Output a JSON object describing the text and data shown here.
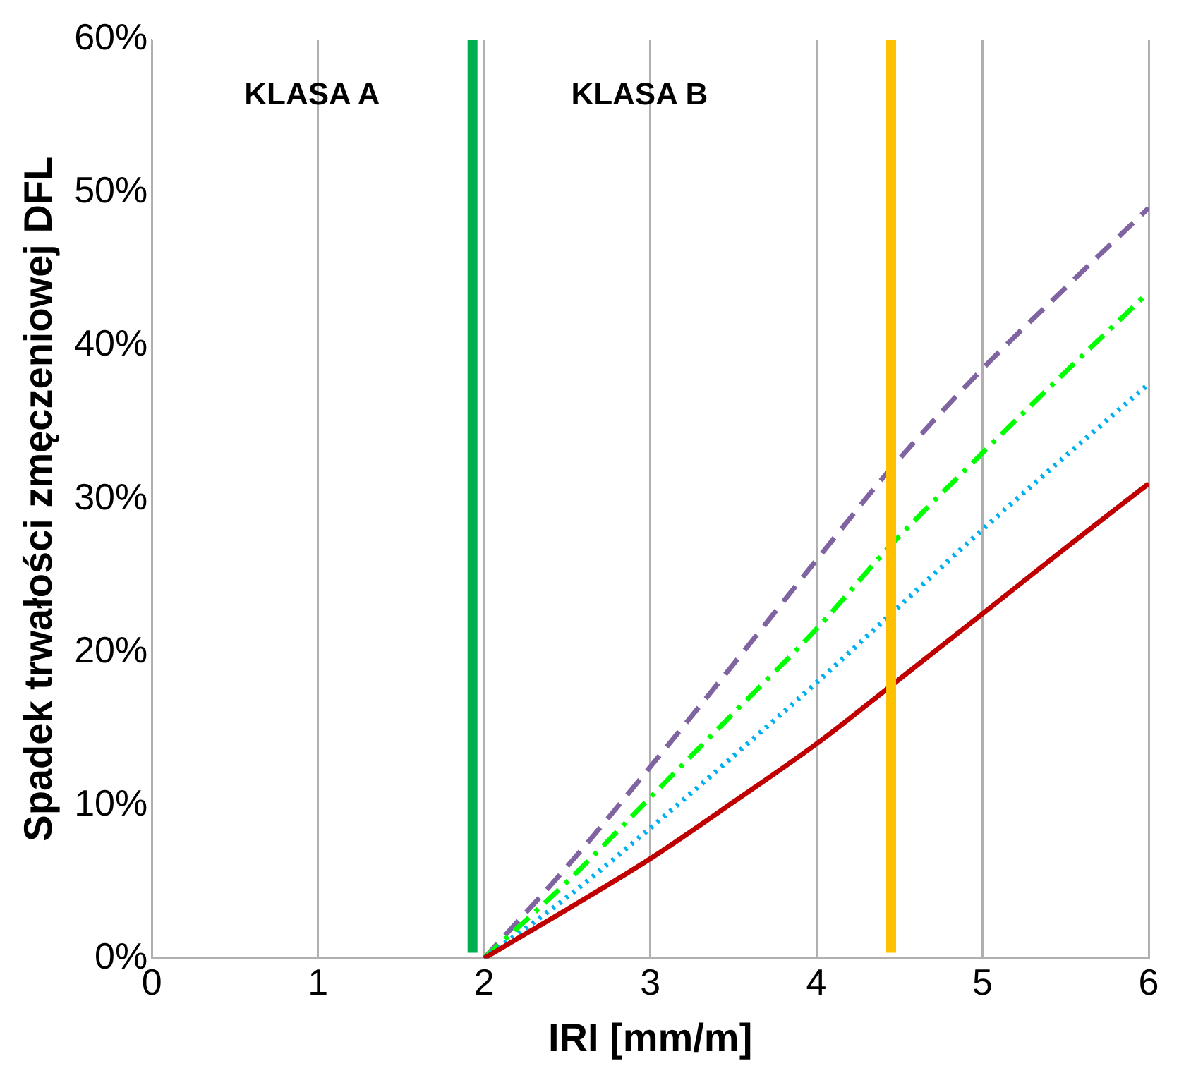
{
  "chart_data": {
    "type": "line",
    "xlabel": "IRI [mm/m]",
    "ylabel": "Spadek trwałości zmęczeniowej DFL",
    "xlim": [
      0,
      6
    ],
    "xticks": [
      0,
      1,
      2,
      3,
      4,
      5,
      6
    ],
    "ylim": [
      0,
      60
    ],
    "yticks": [
      {
        "value": 0,
        "label": "0%"
      },
      {
        "value": 10,
        "label": "10%"
      },
      {
        "value": 20,
        "label": "20%"
      },
      {
        "value": 30,
        "label": "30%"
      },
      {
        "value": 40,
        "label": "40%"
      },
      {
        "value": 50,
        "label": "50%"
      },
      {
        "value": 60,
        "label": "60%"
      }
    ],
    "x": [
      2,
      2.5,
      3,
      3.5,
      4,
      4.45,
      5,
      5.5,
      6
    ],
    "series": [
      {
        "color": "#c00000",
        "line_style": "solid",
        "values": [
          0,
          3.2,
          6.5,
          10.2,
          14,
          17.8,
          22.5,
          26.8,
          31
        ]
      },
      {
        "color": "#00b0f0",
        "line_style": "dotted",
        "values": [
          0,
          4,
          8.5,
          13.2,
          18,
          22.5,
          28,
          32.8,
          37.5
        ]
      },
      {
        "color": "#00ff00",
        "line_style": "dashdot",
        "values": [
          0,
          5,
          10.5,
          16,
          21.5,
          27,
          33,
          38.3,
          43.5
        ]
      },
      {
        "color": "#8064a2",
        "line_style": "dashed",
        "values": [
          0,
          6,
          12.5,
          19.2,
          26,
          32,
          38.5,
          43.8,
          49
        ]
      }
    ],
    "ref_lines": [
      {
        "axis": "x",
        "value": 1.93,
        "color": "#00b050"
      },
      {
        "axis": "x",
        "value": 4.45,
        "color": "#ffc000"
      }
    ],
    "annotations": [
      "KLASA A",
      "KLASA B"
    ],
    "grid": "x",
    "legend": false,
    "marker": "none"
  }
}
